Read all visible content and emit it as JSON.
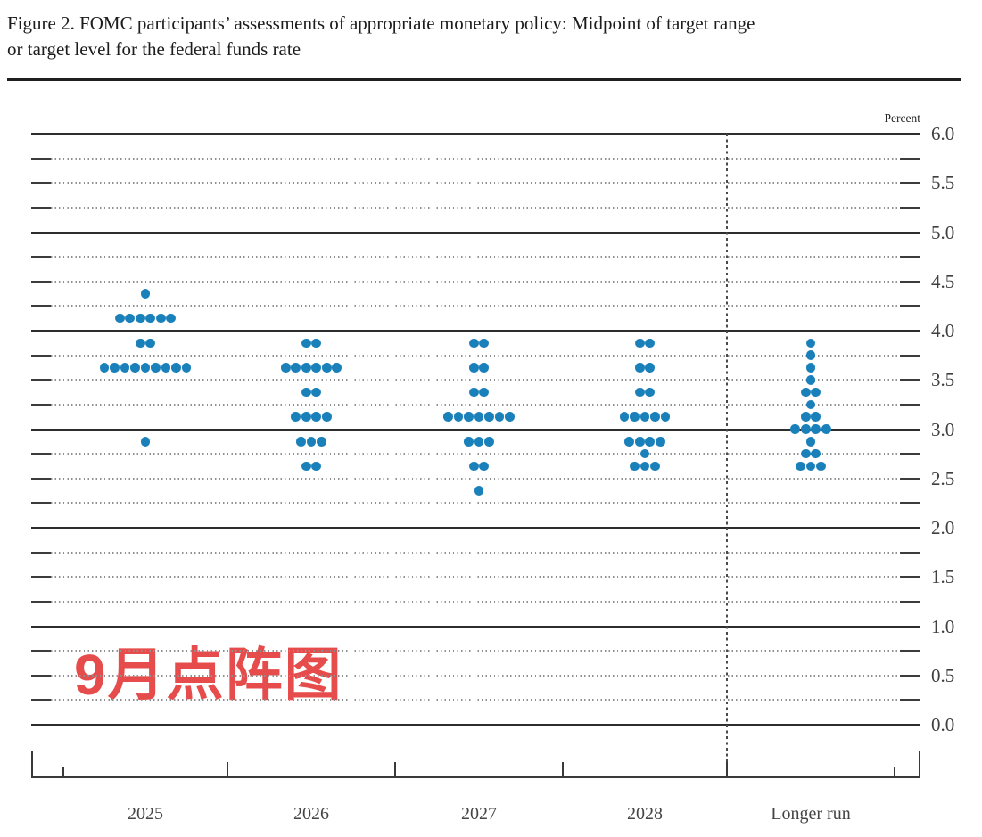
{
  "title": {
    "line1": "Figure 2. FOMC participants’ assessments of appropriate monetary policy: Midpoint of target range",
    "line2": "or target level for the federal funds rate"
  },
  "annotation": {
    "text": "9月点阵图",
    "color": "#e74c4c"
  },
  "colors": {
    "dot": "#1a80ba",
    "grid_solid": "#2d2d2d",
    "grid_dotted": "#909090",
    "axis": "#3a3a3a",
    "text": "#3f3f3f"
  },
  "axis": {
    "unit_label": "Percent",
    "y_tick_labels": [
      "6.0",
      "5.5",
      "5.0",
      "4.5",
      "4.0",
      "3.5",
      "3.0",
      "2.5",
      "2.0",
      "1.5",
      "1.0",
      "0.5",
      "0.0"
    ],
    "x_labels": [
      "2025",
      "2026",
      "2027",
      "2028",
      "Longer run"
    ]
  },
  "chart_data": {
    "type": "scatter",
    "title": "Figure 2. FOMC participants’ assessments of appropriate monetary policy: Midpoint of target range or target level for the federal funds rate",
    "xlabel": "",
    "ylabel": "Percent",
    "ylim": [
      0.0,
      6.0
    ],
    "grid_step": 0.25,
    "label_step": 0.5,
    "grid": "dotted minor, solid at integers",
    "separator": "dashed vertical line before Longer run",
    "categories": [
      "2025",
      "2026",
      "2027",
      "2028",
      "Longer run"
    ],
    "series": [
      {
        "name": "2025",
        "distribution": [
          {
            "rate": 4.375,
            "count": 1
          },
          {
            "rate": 4.125,
            "count": 6
          },
          {
            "rate": 3.875,
            "count": 2
          },
          {
            "rate": 3.625,
            "count": 9
          },
          {
            "rate": 2.875,
            "count": 1
          }
        ]
      },
      {
        "name": "2026",
        "distribution": [
          {
            "rate": 3.875,
            "count": 2
          },
          {
            "rate": 3.625,
            "count": 6
          },
          {
            "rate": 3.375,
            "count": 2
          },
          {
            "rate": 3.125,
            "count": 4
          },
          {
            "rate": 2.875,
            "count": 3
          },
          {
            "rate": 2.625,
            "count": 2
          }
        ]
      },
      {
        "name": "2027",
        "distribution": [
          {
            "rate": 3.875,
            "count": 2
          },
          {
            "rate": 3.625,
            "count": 2
          },
          {
            "rate": 3.375,
            "count": 2
          },
          {
            "rate": 3.125,
            "count": 7
          },
          {
            "rate": 2.875,
            "count": 3
          },
          {
            "rate": 2.625,
            "count": 2
          },
          {
            "rate": 2.375,
            "count": 1
          }
        ]
      },
      {
        "name": "2028",
        "distribution": [
          {
            "rate": 3.875,
            "count": 2
          },
          {
            "rate": 3.625,
            "count": 2
          },
          {
            "rate": 3.375,
            "count": 2
          },
          {
            "rate": 3.125,
            "count": 5
          },
          {
            "rate": 2.875,
            "count": 4
          },
          {
            "rate": 2.75,
            "count": 1
          },
          {
            "rate": 2.625,
            "count": 3
          }
        ]
      },
      {
        "name": "Longer run",
        "distribution": [
          {
            "rate": 3.875,
            "count": 1
          },
          {
            "rate": 3.75,
            "count": 1
          },
          {
            "rate": 3.625,
            "count": 1
          },
          {
            "rate": 3.5,
            "count": 1
          },
          {
            "rate": 3.375,
            "count": 2
          },
          {
            "rate": 3.25,
            "count": 1
          },
          {
            "rate": 3.125,
            "count": 2
          },
          {
            "rate": 3.0,
            "count": 4
          },
          {
            "rate": 2.875,
            "count": 1
          },
          {
            "rate": 2.75,
            "count": 2
          },
          {
            "rate": 2.625,
            "count": 3
          }
        ]
      }
    ]
  }
}
